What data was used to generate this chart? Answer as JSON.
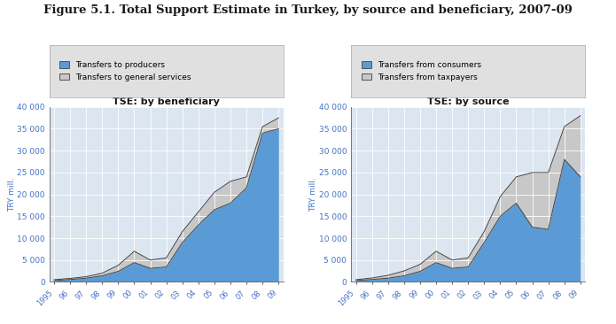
{
  "title": "Figure 5.1. Total Support Estimate in Turkey, by source and beneficiary, 2007-09",
  "title_fontsize": 9.5,
  "subtitle_left": "TSE: by beneficiary",
  "subtitle_right": "TSE: by source",
  "ylabel": "TRY mill.",
  "years": [
    1995,
    1996,
    1997,
    1998,
    1999,
    2000,
    2001,
    2002,
    2003,
    2004,
    2005,
    2006,
    2007,
    2008,
    2009
  ],
  "producers": [
    300,
    550,
    850,
    1400,
    2400,
    4400,
    3100,
    3400,
    9000,
    13000,
    16500,
    18000,
    21500,
    34000,
    35000
  ],
  "general_services": [
    500,
    800,
    1200,
    2000,
    3800,
    7000,
    5000,
    5500,
    11500,
    16000,
    20500,
    23000,
    24000,
    35500,
    37500
  ],
  "consumers": [
    300,
    550,
    850,
    1400,
    2400,
    4400,
    3100,
    3400,
    9000,
    15000,
    18000,
    12500,
    12000,
    28000,
    24000
  ],
  "taxpayers": [
    500,
    900,
    1500,
    2500,
    4000,
    7000,
    5000,
    5500,
    11500,
    19500,
    24000,
    25000,
    25000,
    35500,
    38000
  ],
  "color_blue": "#5b9bd5",
  "color_gray": "#c8c8c8",
  "bg_color": "#dce6f1",
  "ylim": [
    0,
    40000
  ],
  "yticks": [
    0,
    5000,
    10000,
    15000,
    20000,
    25000,
    30000,
    35000,
    40000
  ],
  "legend_left_1": "Transfers to producers",
  "legend_left_2": "Transfers to general services",
  "legend_right_1": "Transfers from consumers",
  "legend_right_2": "Transfers from taxpayers",
  "axis_label_color": "#4472c4",
  "tick_color": "#4472c4",
  "legend_bg": "#e0e0e0",
  "outline_color": "#444444"
}
